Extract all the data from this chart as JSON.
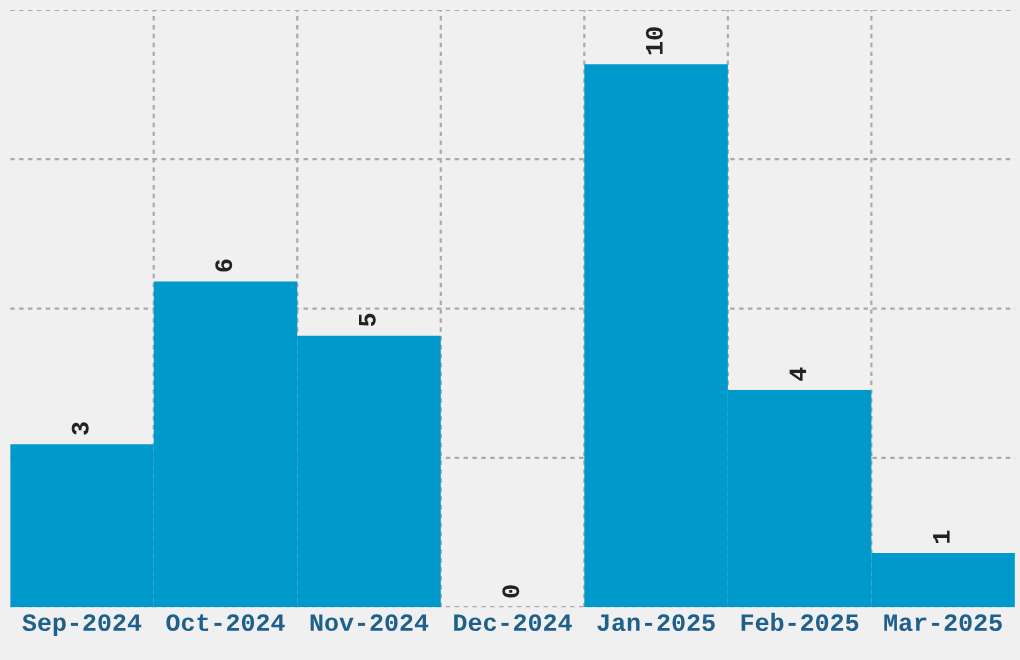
{
  "chart_data": {
    "type": "bar",
    "categories": [
      "Sep-2024",
      "Oct-2024",
      "Nov-2024",
      "Dec-2024",
      "Jan-2025",
      "Feb-2025",
      "Mar-2025"
    ],
    "values": [
      3,
      6,
      5,
      0,
      10,
      4,
      1
    ],
    "color": "#0099cc",
    "ylim": [
      0,
      11
    ],
    "yticks": [
      {
        "value": 0,
        "label": null
      },
      {
        "value": 2.75,
        "label": null
      },
      {
        "value": 5.5,
        "label": null
      },
      {
        "value": 8.25,
        "label": null
      },
      {
        "value": 11,
        "label": null
      }
    ],
    "tick_labels": "x",
    "data_labels": true,
    "grid": true
  }
}
